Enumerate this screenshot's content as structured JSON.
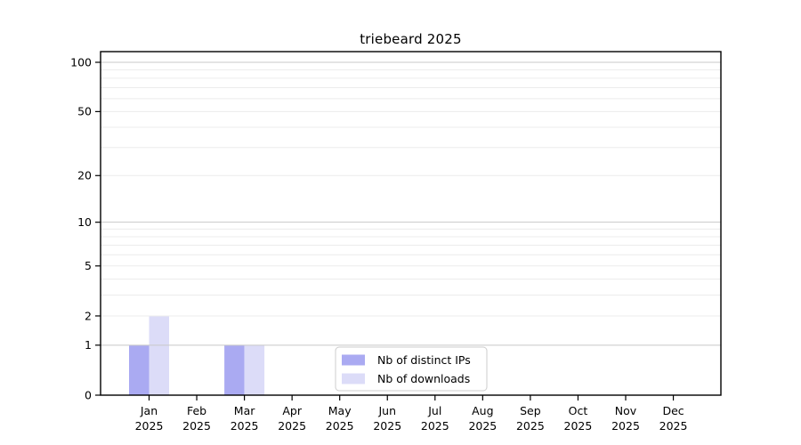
{
  "figure": {
    "background": "#ffffff"
  },
  "chart_data": {
    "type": "bar",
    "title": "triebeard 2025",
    "categories": [
      "Jan",
      "Feb",
      "Mar",
      "Apr",
      "May",
      "Jun",
      "Jul",
      "Aug",
      "Sep",
      "Oct",
      "Nov",
      "Dec"
    ],
    "category_sublabel": "2025",
    "series": [
      {
        "name": "Nb of distinct IPs",
        "color": "#aaaaf2",
        "values": [
          1,
          0,
          1,
          0,
          0,
          0,
          0,
          0,
          0,
          0,
          0,
          0
        ]
      },
      {
        "name": "Nb of downloads",
        "color": "#dcdcf8",
        "values": [
          2,
          0,
          1,
          0,
          0,
          0,
          0,
          0,
          0,
          0,
          0,
          0
        ]
      }
    ],
    "xlabel": "",
    "ylabel": "",
    "yscale": "log1p",
    "ylim": [
      0,
      116
    ],
    "y_tick_values": [
      0,
      1,
      2,
      5,
      10,
      20,
      50,
      100
    ],
    "y_major_grid_values": [
      1,
      10,
      100
    ],
    "y_minor_grid_values": [
      2,
      3,
      4,
      5,
      6,
      7,
      8,
      9,
      20,
      30,
      40,
      50,
      60,
      70,
      80,
      90
    ],
    "grid": true,
    "legend": {
      "position": "lower center",
      "entries": [
        "Nb of distinct IPs",
        "Nb of downloads"
      ]
    }
  },
  "colors": {
    "axis": "#000000",
    "text": "#000000",
    "major_grid": "#c8c8c8",
    "minor_grid": "#ececec",
    "legend_border": "#cccccc",
    "legend_background": "#ffffff",
    "background": "#ffffff",
    "series_distinct_ips": "#aaaaf2",
    "series_downloads": "#dcdcf8"
  }
}
